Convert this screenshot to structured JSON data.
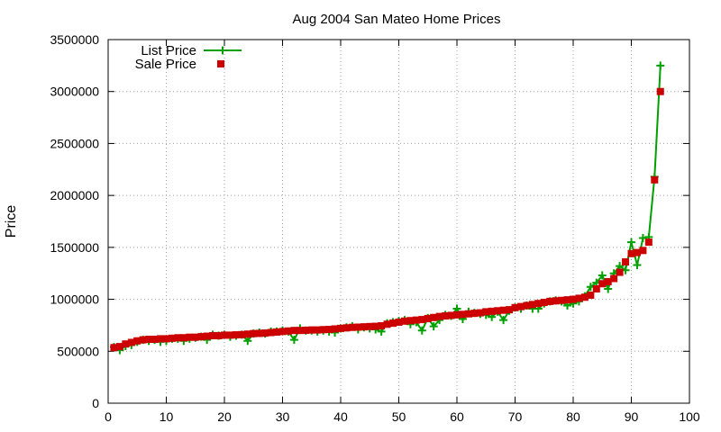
{
  "chart_data": {
    "type": "scatter",
    "title": "Aug 2004 San Mateo Home Prices",
    "xlabel": "",
    "ylabel": "Price",
    "xlim": [
      0,
      100
    ],
    "ylim": [
      0,
      3500000
    ],
    "xticks": [
      0,
      10,
      20,
      30,
      40,
      50,
      60,
      70,
      80,
      90,
      100
    ],
    "yticks": [
      0,
      500000,
      1000000,
      1500000,
      2000000,
      2500000,
      3000000,
      3500000
    ],
    "grid": true,
    "legend_position": "top-left",
    "colors": {
      "list": "#00a000",
      "sale": "#cc0000"
    },
    "series": [
      {
        "name": "List Price",
        "style": "line-with-plus-markers",
        "x": [
          1,
          2,
          3,
          4,
          5,
          6,
          7,
          8,
          9,
          10,
          11,
          12,
          13,
          14,
          15,
          16,
          17,
          18,
          19,
          20,
          21,
          22,
          23,
          24,
          25,
          26,
          27,
          28,
          29,
          30,
          31,
          32,
          33,
          34,
          35,
          36,
          37,
          38,
          39,
          40,
          41,
          42,
          43,
          44,
          45,
          46,
          47,
          48,
          49,
          50,
          51,
          52,
          53,
          54,
          55,
          56,
          57,
          58,
          59,
          60,
          61,
          62,
          63,
          64,
          65,
          66,
          67,
          68,
          69,
          70,
          71,
          72,
          73,
          74,
          75,
          76,
          77,
          78,
          79,
          80,
          81,
          82,
          83,
          84,
          85,
          86,
          87,
          88,
          89,
          90,
          91,
          92,
          93,
          94,
          95
        ],
        "values": [
          540000,
          510000,
          550000,
          560000,
          590000,
          610000,
          600000,
          610000,
          590000,
          600000,
          620000,
          620000,
          600000,
          620000,
          630000,
          640000,
          610000,
          660000,
          650000,
          660000,
          640000,
          650000,
          660000,
          600000,
          670000,
          680000,
          670000,
          690000,
          690000,
          700000,
          690000,
          610000,
          720000,
          700000,
          700000,
          690000,
          700000,
          690000,
          680000,
          720000,
          730000,
          740000,
          710000,
          730000,
          720000,
          710000,
          690000,
          770000,
          780000,
          790000,
          800000,
          760000,
          780000,
          700000,
          820000,
          740000,
          800000,
          850000,
          840000,
          910000,
          810000,
          880000,
          870000,
          860000,
          850000,
          830000,
          880000,
          800000,
          890000,
          920000,
          910000,
          940000,
          910000,
          910000,
          960000,
          980000,
          990000,
          980000,
          940000,
          960000,
          980000,
          1030000,
          1120000,
          1160000,
          1230000,
          1100000,
          1250000,
          1320000,
          1280000,
          1550000,
          1330000,
          1590000,
          1600000,
          2180000,
          3250000
        ]
      },
      {
        "name": "Sale Price",
        "style": "square-markers",
        "x": [
          1,
          2,
          3,
          4,
          5,
          6,
          7,
          8,
          9,
          10,
          11,
          12,
          13,
          14,
          15,
          16,
          17,
          18,
          19,
          20,
          21,
          22,
          23,
          24,
          25,
          26,
          27,
          28,
          29,
          30,
          31,
          32,
          33,
          34,
          35,
          36,
          37,
          38,
          39,
          40,
          41,
          42,
          43,
          44,
          45,
          46,
          47,
          48,
          49,
          50,
          51,
          52,
          53,
          54,
          55,
          56,
          57,
          58,
          59,
          60,
          61,
          62,
          63,
          64,
          65,
          66,
          67,
          68,
          69,
          70,
          71,
          72,
          73,
          74,
          75,
          76,
          77,
          78,
          79,
          80,
          81,
          82,
          83,
          84,
          85,
          86,
          87,
          88,
          89,
          90,
          91,
          92,
          93,
          94,
          95
        ],
        "values": [
          535000,
          545000,
          570000,
          585000,
          600000,
          610000,
          615000,
          615000,
          620000,
          620000,
          625000,
          630000,
          630000,
          635000,
          635000,
          640000,
          645000,
          650000,
          650000,
          655000,
          655000,
          658000,
          660000,
          665000,
          670000,
          672000,
          675000,
          680000,
          685000,
          690000,
          695000,
          700000,
          700000,
          702000,
          705000,
          705000,
          708000,
          710000,
          715000,
          720000,
          725000,
          730000,
          732000,
          735000,
          738000,
          740000,
          745000,
          760000,
          770000,
          780000,
          790000,
          795000,
          800000,
          805000,
          815000,
          825000,
          835000,
          840000,
          845000,
          850000,
          855000,
          860000,
          865000,
          870000,
          880000,
          885000,
          890000,
          895000,
          900000,
          920000,
          930000,
          940000,
          950000,
          960000,
          970000,
          980000,
          985000,
          990000,
          995000,
          1000000,
          1010000,
          1020000,
          1040000,
          1100000,
          1150000,
          1170000,
          1200000,
          1260000,
          1360000,
          1440000,
          1450000,
          1470000,
          1550000,
          2150000,
          3000000
        ]
      }
    ]
  }
}
